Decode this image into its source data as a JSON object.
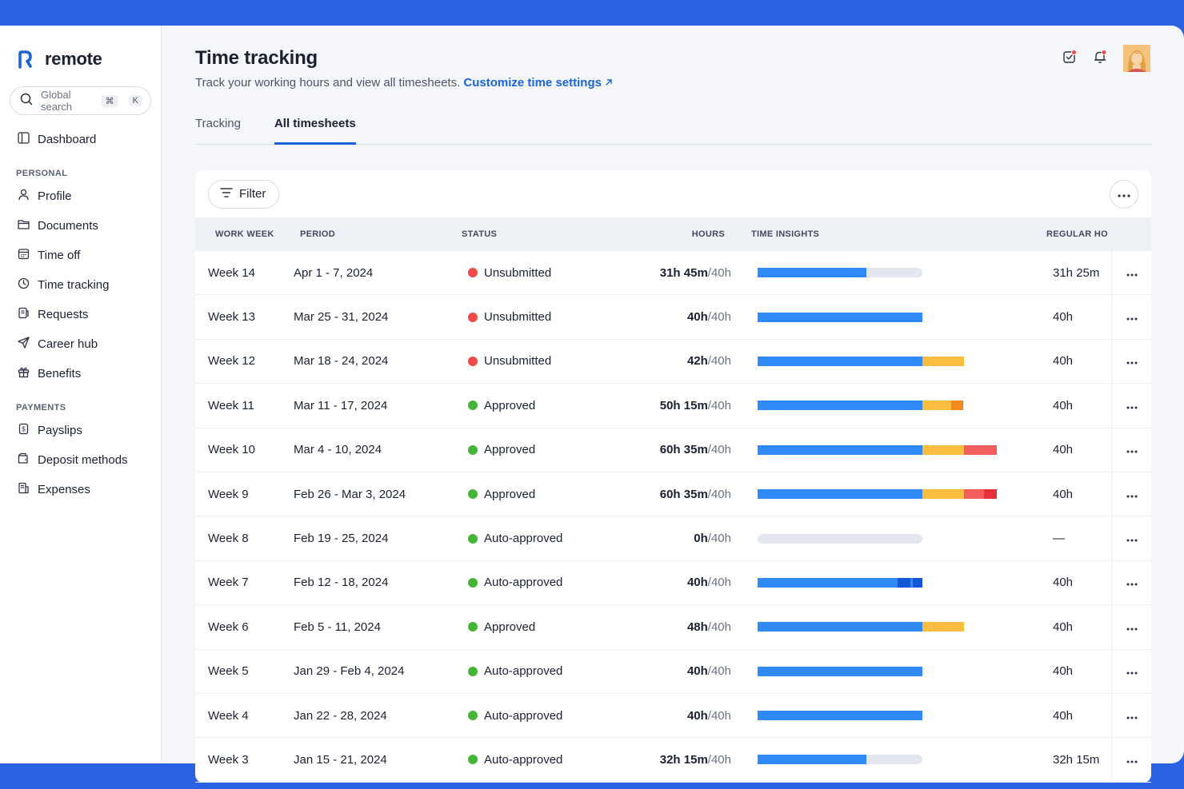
{
  "brand": {
    "name": "remote"
  },
  "search": {
    "placeholder": "Global search",
    "key1": "⌘",
    "key2": "K"
  },
  "nav": {
    "dashboard": "Dashboard",
    "personal_label": "PERSONAL",
    "personal": [
      {
        "id": "profile",
        "label": "Profile"
      },
      {
        "id": "documents",
        "label": "Documents"
      },
      {
        "id": "time-off",
        "label": "Time off"
      },
      {
        "id": "time-tracking",
        "label": "Time tracking"
      },
      {
        "id": "requests",
        "label": "Requests"
      },
      {
        "id": "career-hub",
        "label": "Career hub"
      },
      {
        "id": "benefits",
        "label": "Benefits"
      }
    ],
    "payments_label": "PAYMENTS",
    "payments": [
      {
        "id": "payslips",
        "label": "Payslips"
      },
      {
        "id": "deposit-methods",
        "label": "Deposit methods"
      },
      {
        "id": "expenses",
        "label": "Expenses"
      }
    ]
  },
  "page": {
    "title": "Time tracking",
    "subtitle": "Track your working hours and view all timesheets.",
    "link": "Customize time settings"
  },
  "tabs": [
    {
      "label": "Tracking",
      "active": false
    },
    {
      "label": "All timesheets",
      "active": true
    }
  ],
  "toolbar": {
    "filter_label": "Filter"
  },
  "table": {
    "columns": [
      "WORK WEEK",
      "PERIOD",
      "STATUS",
      "HOURS",
      "TIME INSIGHTS",
      "REGULAR HO"
    ],
    "rows": [
      {
        "week": "Week 14",
        "period": "Apr 1 - 7, 2024",
        "status": "Unsubmitted",
        "hours": "31h 45m",
        "target": "/40h",
        "regular": "31h 25m"
      },
      {
        "week": "Week 13",
        "period": "Mar 25 - 31, 2024",
        "status": "Unsubmitted",
        "hours": "40h",
        "target": "/40h",
        "regular": "40h"
      },
      {
        "week": "Week 12",
        "period": "Mar 18 - 24, 2024",
        "status": "Unsubmitted",
        "hours": "42h",
        "target": "/40h",
        "regular": "40h"
      },
      {
        "week": "Week 11",
        "period": "Mar 11 - 17, 2024",
        "status": "Approved",
        "hours": "50h 15m",
        "target": "/40h",
        "regular": "40h"
      },
      {
        "week": "Week 10",
        "period": "Mar 4 - 10, 2024",
        "status": "Approved",
        "hours": "60h 35m",
        "target": "/40h",
        "regular": "40h"
      },
      {
        "week": "Week 9",
        "period": "Feb 26 - Mar 3, 2024",
        "status": "Approved",
        "hours": "60h 35m",
        "target": "/40h",
        "regular": "40h"
      },
      {
        "week": "Week 8",
        "period": "Feb 19 - 25, 2024",
        "status": "Auto-approved",
        "hours": "0h",
        "target": "/40h",
        "regular": "—"
      },
      {
        "week": "Week 7",
        "period": "Feb 12 - 18, 2024",
        "status": "Auto-approved",
        "hours": "40h",
        "target": "/40h",
        "regular": "40h"
      },
      {
        "week": "Week 6",
        "period": "Feb 5 - 11, 2024",
        "status": "Approved",
        "hours": "48h",
        "target": "/40h",
        "regular": "40h"
      },
      {
        "week": "Week 5",
        "period": "Jan 29 - Feb 4, 2024",
        "status": "Auto-approved",
        "hours": "40h",
        "target": "/40h",
        "regular": "40h"
      },
      {
        "week": "Week 4",
        "period": "Jan 22 - 28, 2024",
        "status": "Auto-approved",
        "hours": "40h",
        "target": "/40h",
        "regular": "40h"
      },
      {
        "week": "Week 3",
        "period": "Jan 15 - 21, 2024",
        "status": "Auto-approved",
        "hours": "32h 15m",
        "target": "/40h",
        "regular": "32h 15m"
      }
    ]
  },
  "insights": [
    {
      "segments": [
        {
          "color": "#2f8af5",
          "hours": 26.5
        }
      ],
      "total": 40
    },
    {
      "segments": [
        {
          "color": "#2f8af5",
          "hours": 40
        }
      ],
      "total": 40
    },
    {
      "segments": [
        {
          "color": "#2f8af5",
          "hours": 40
        },
        {
          "color": "#fbbd3f",
          "hours": 10
        }
      ],
      "total": 50
    },
    {
      "segments": [
        {
          "color": "#2f8af5",
          "hours": 40
        },
        {
          "color": "#fbbd3f",
          "hours": 7
        },
        {
          "color": "#f28a1e",
          "hours": 3
        }
      ],
      "total": 50
    },
    {
      "segments": [
        {
          "color": "#2f8af5",
          "hours": 40
        },
        {
          "color": "#fbbd3f",
          "hours": 10
        },
        {
          "color": "#f25d5d",
          "hours": 8
        }
      ],
      "total": 58
    },
    {
      "segments": [
        {
          "color": "#2f8af5",
          "hours": 40
        },
        {
          "color": "#fbbd3f",
          "hours": 10
        },
        {
          "color": "#f25d5d",
          "hours": 5
        },
        {
          "color": "#e8303a",
          "hours": 3
        }
      ],
      "total": 58
    },
    {
      "segments": [],
      "total": 40
    },
    {
      "segments": [
        {
          "color": "#2f8af5",
          "hours": 34
        },
        {
          "color": "#1457d6",
          "hours": 3
        },
        {
          "color": "#2f8af5",
          "hours": 0.6
        },
        {
          "color": "#1457d6",
          "hours": 2.4
        }
      ],
      "total": 40
    },
    {
      "segments": [
        {
          "color": "#2f8af5",
          "hours": 40
        },
        {
          "color": "#fbbd3f",
          "hours": 10
        }
      ],
      "total": 50
    },
    {
      "segments": [
        {
          "color": "#2f8af5",
          "hours": 40
        }
      ],
      "total": 40
    },
    {
      "segments": [
        {
          "color": "#2f8af5",
          "hours": 40
        }
      ],
      "total": 40
    },
    {
      "segments": [
        {
          "color": "#2f8af5",
          "hours": 26.5
        }
      ],
      "total": 40
    }
  ],
  "status_colors": {
    "Unsubmitted": "#ef4b4b",
    "Approved": "#45b538",
    "Auto-approved": "#45b538"
  },
  "icons": {
    "search": "search-icon",
    "filter": "filter-icon",
    "more": "more-horizontal-icon",
    "tasks": "task-check-icon",
    "bell": "bell-icon"
  }
}
